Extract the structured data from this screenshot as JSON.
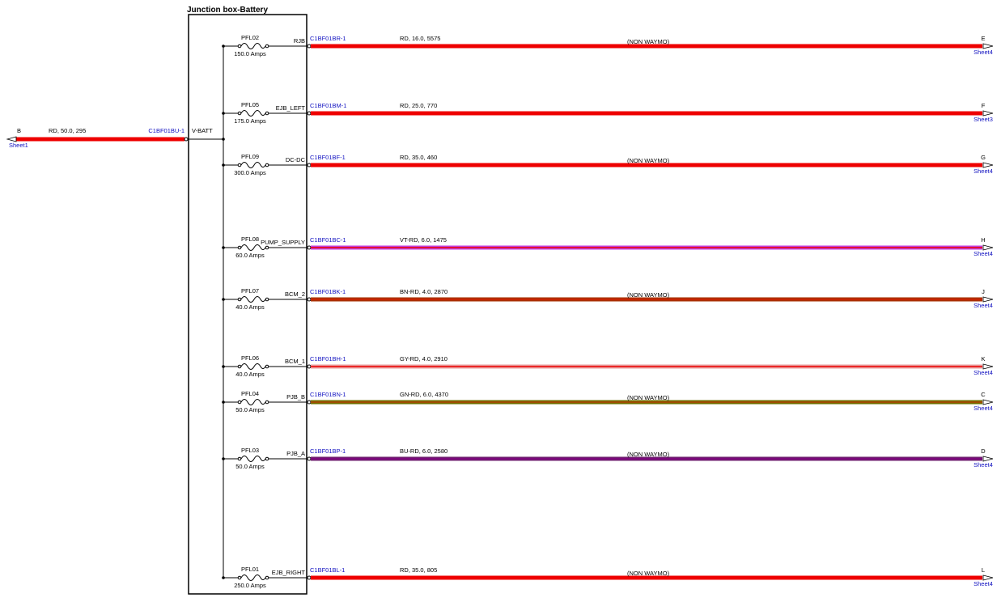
{
  "box": {
    "title": "Junction box-Battery"
  },
  "input": {
    "connector": "B",
    "sheet": "Sheet1",
    "wire": "RD, 50.0, 295",
    "pin": "C1BF01BU-1",
    "net": "V-BATT",
    "color": "#ee0000"
  },
  "circuits": [
    {
      "fuse": "PFL02",
      "rating": "150.0 Amps",
      "net": "RJB",
      "pin": "C1BF01BR-1",
      "wire": "RD, 16.0, 5575",
      "note": "(NON WAYMO)",
      "connector": "E",
      "sheet": "Sheet4",
      "color": "#ee0000",
      "stripe": "#ee0000"
    },
    {
      "fuse": "PFL05",
      "rating": "175.0 Amps",
      "net": "EJB_LEFT",
      "pin": "C1BF01BM-1",
      "wire": "RD, 25.0, 770",
      "connector": "F",
      "sheet": "Sheet3",
      "color": "#ee0000",
      "stripe": "#ee0000"
    },
    {
      "fuse": "PFL09",
      "rating": "300.0 Amps",
      "net": "DC-DC",
      "pin": "C1BF01BF-1",
      "wire": "RD, 35.0, 460",
      "note": "(NON WAYMO)",
      "connector": "G",
      "sheet": "Sheet4",
      "color": "#ee0000",
      "stripe": "#ee0000"
    },
    {
      "fuse": "PFL08",
      "rating": "60.0 Amps",
      "net": "PUMP_SUPPLY",
      "pin": "C1BF01BC-1",
      "wire": "VT-RD, 6.0, 1475",
      "connector": "H",
      "sheet": "Sheet4",
      "color": "#c040e0",
      "stripe": "#ee0000"
    },
    {
      "fuse": "PFL07",
      "rating": "40.0 Amps",
      "net": "BCM_2",
      "pin": "C1BF01BK-1",
      "wire": "BN-RD, 4.0, 2870",
      "note": "(NON WAYMO)",
      "connector": "J",
      "sheet": "Sheet4",
      "color": "#a83000",
      "stripe": "#d02000"
    },
    {
      "fuse": "PFL06",
      "rating": "40.0 Amps",
      "net": "BCM_1",
      "pin": "C1BF01BH-1",
      "wire": "GY-RD, 4.0, 2910",
      "connector": "K",
      "sheet": "Sheet4",
      "color": "#e8a0a0",
      "stripe": "#ee0000"
    },
    {
      "fuse": "PFL04",
      "rating": "50.0 Amps",
      "net": "PJB_B",
      "pin": "C1BF01BN-1",
      "wire": "GN-RD, 6.0, 4370",
      "note": "(NON WAYMO)",
      "connector": "C",
      "sheet": "Sheet4",
      "color": "#707000",
      "stripe": "#b04000"
    },
    {
      "fuse": "PFL03",
      "rating": "50.0 Amps",
      "net": "PJB_A",
      "pin": "C1BF01BP-1",
      "wire": "BU-RD, 6.0, 2580",
      "note": "(NON WAYMO)",
      "connector": "D",
      "sheet": "Sheet4",
      "color": "#702070",
      "stripe": "#800080"
    },
    {
      "fuse": "PFL01",
      "rating": "250.0 Amps",
      "net": "EJB_RIGHT",
      "pin": "C1BF01BL-1",
      "wire": "RD, 35.0, 805",
      "note": "(NON WAYMO)",
      "connector": "L",
      "sheet": "Sheet4",
      "color": "#ee0000",
      "stripe": "#ee0000"
    }
  ]
}
